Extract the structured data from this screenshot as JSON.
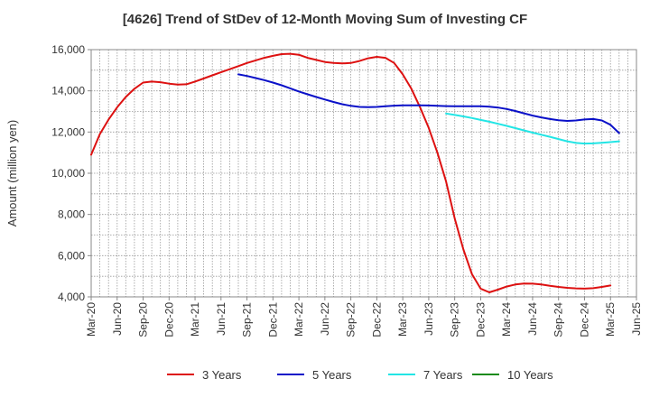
{
  "chart_data": {
    "type": "line",
    "title": "[4626]  Trend of StDev of 12-Month Moving Sum of Investing CF",
    "ylabel": "Amount (million yen)",
    "xlabel": "",
    "ylim": [
      4000,
      16000
    ],
    "yticks": [
      4000,
      6000,
      8000,
      10000,
      12000,
      14000,
      16000
    ],
    "ytick_labels": [
      "4,000",
      "6,000",
      "8,000",
      "10,000",
      "12,000",
      "14,000",
      "16,000"
    ],
    "xlim": [
      "2020-03",
      "2025-06"
    ],
    "xtick_labels": [
      "Mar-20",
      "Jun-20",
      "Sep-20",
      "Dec-20",
      "Mar-21",
      "Jun-21",
      "Sep-21",
      "Dec-21",
      "Mar-22",
      "Jun-22",
      "Sep-22",
      "Dec-22",
      "Mar-23",
      "Jun-23",
      "Sep-23",
      "Dec-23",
      "Mar-24",
      "Jun-24",
      "Sep-24",
      "Dec-24",
      "Mar-25",
      "Jun-25"
    ],
    "grid": true,
    "legend_position": "bottom",
    "series": [
      {
        "name": "3 Years",
        "color": "#dd1111",
        "start": "2020-03",
        "values": [
          10900,
          11900,
          12600,
          13200,
          13700,
          14100,
          14400,
          14450,
          14420,
          14350,
          14300,
          14320,
          14450,
          14600,
          14750,
          14900,
          15050,
          15200,
          15350,
          15480,
          15600,
          15700,
          15780,
          15800,
          15750,
          15600,
          15500,
          15400,
          15350,
          15330,
          15350,
          15450,
          15580,
          15650,
          15600,
          15350,
          14800,
          14100,
          13200,
          12200,
          11000,
          9600,
          7800,
          6300,
          5100,
          4400,
          4220,
          4350,
          4500,
          4600,
          4650,
          4640,
          4600,
          4540,
          4480,
          4440,
          4410,
          4400,
          4420,
          4480,
          4550
        ]
      },
      {
        "name": "5 Years",
        "color": "#0a10c8",
        "start": "2021-08",
        "values": [
          14800,
          14720,
          14620,
          14520,
          14400,
          14270,
          14120,
          13970,
          13830,
          13700,
          13580,
          13460,
          13350,
          13270,
          13220,
          13210,
          13220,
          13250,
          13280,
          13300,
          13300,
          13300,
          13290,
          13270,
          13260,
          13250,
          13250,
          13250,
          13250,
          13230,
          13190,
          13120,
          13020,
          12910,
          12800,
          12710,
          12630,
          12570,
          12540,
          12560,
          12610,
          12630,
          12560,
          12350,
          11950
        ]
      },
      {
        "name": "7 Years",
        "color": "#22e5e5",
        "start": "2023-08",
        "values": [
          12900,
          12830,
          12760,
          12680,
          12590,
          12500,
          12400,
          12300,
          12190,
          12080,
          11970,
          11870,
          11770,
          11660,
          11550,
          11470,
          11440,
          11450,
          11480,
          11510,
          11550
        ]
      },
      {
        "name": "10 Years",
        "color": "#1a8a1a",
        "start": "2025-03",
        "values": []
      }
    ]
  }
}
